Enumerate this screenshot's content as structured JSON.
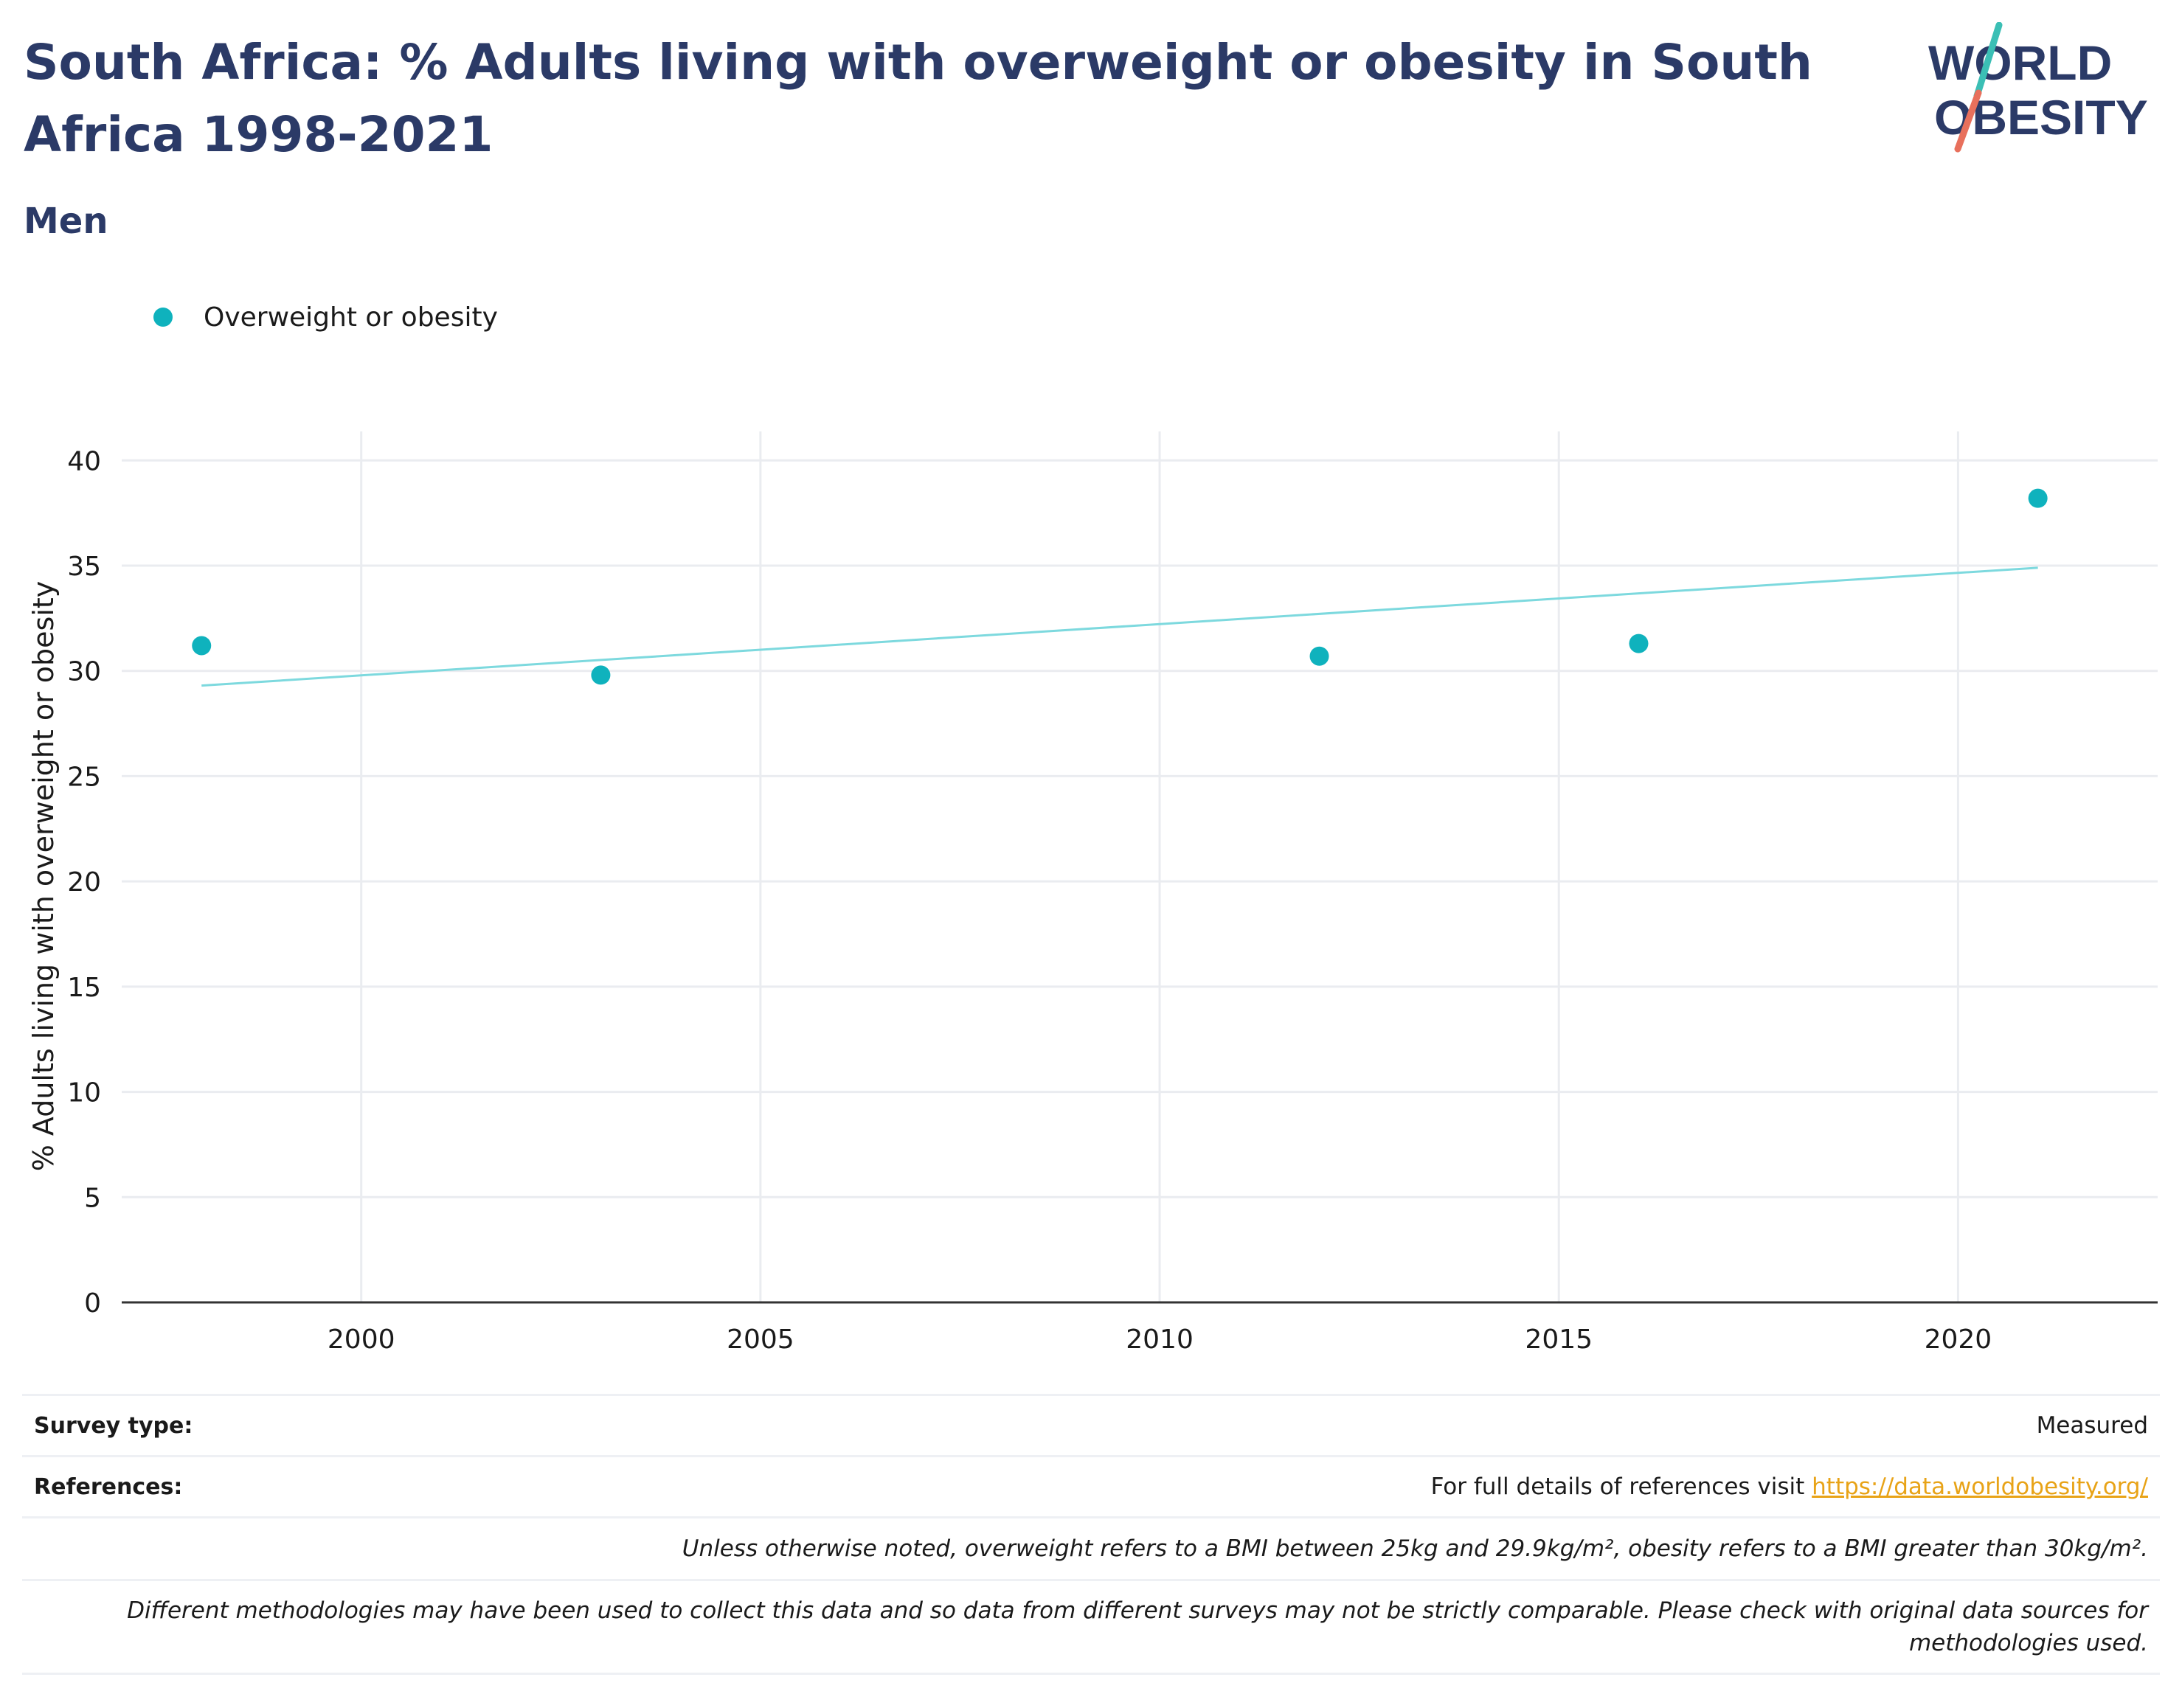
{
  "header": {
    "title": "South Africa: % Adults living with overweight or obesity in South Africa 1998-2021",
    "subtitle": "Men"
  },
  "logo": {
    "line1": "WORLD",
    "line2": "OBESITY"
  },
  "colors": {
    "title": "#2b3a67",
    "series": "#0fb2bd",
    "trend": "#7dd9de",
    "grid": "#eaecf0",
    "link": "#e8a317",
    "logo_slash_top": "#3bbfb5",
    "logo_slash_bottom": "#e8705c"
  },
  "chart_data": {
    "type": "scatter",
    "series": [
      {
        "name": "Overweight or obesity",
        "x": [
          1998,
          2003,
          2012,
          2016,
          2021
        ],
        "y": [
          31.2,
          29.8,
          30.7,
          31.3,
          38.2
        ]
      }
    ],
    "trendline": {
      "x": [
        1998,
        2021
      ],
      "y": [
        29.3,
        34.9
      ]
    },
    "xlim": [
      1997,
      2022.5
    ],
    "ylim": [
      0,
      40.5
    ],
    "xticks": [
      2000,
      2005,
      2010,
      2015,
      2020
    ],
    "yticks": [
      0,
      5,
      10,
      15,
      20,
      25,
      30,
      35,
      40
    ],
    "xlabel": "",
    "ylabel": "% Adults living with overweight or obesity",
    "grid": true,
    "legend_position": "top-left"
  },
  "footer": {
    "survey_type_label": "Survey type:",
    "survey_type_value": "Measured",
    "references_label": "References:",
    "references_text": "For full details of references visit ",
    "references_link": "https://data.worldobesity.org/",
    "note1": "Unless otherwise noted, overweight refers to a BMI between 25kg and 29.9kg/m², obesity refers to a BMI greater than 30kg/m².",
    "note2": "Different methodologies may have been used to collect this data and so data from different surveys may not be strictly comparable. Please check with original data sources for methodologies used."
  }
}
